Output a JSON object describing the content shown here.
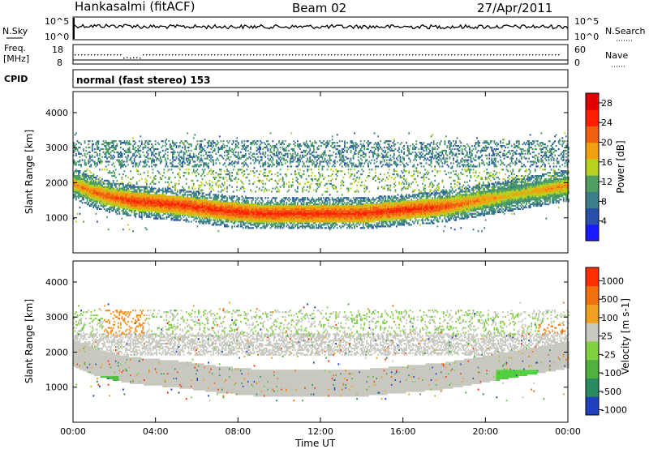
{
  "header": {
    "station": "Hankasalmi (fitACF)",
    "beam": "Beam 02",
    "date": "27/Apr/2011"
  },
  "top_panels": {
    "nsky_label": "N.Sky",
    "nsky_ticks": [
      "10^5",
      "10^0"
    ],
    "nsearch_label": "N.Search",
    "freq_label_1": "Freq.",
    "freq_label_2": "[MHz]",
    "freq_ticks_left": [
      "18",
      "8"
    ],
    "nave_ticks_right": [
      "60",
      "0"
    ],
    "nave_label": "Nave",
    "cpid_label": "CPID",
    "cpid_text": "normal (fast stereo) 153"
  },
  "axes": {
    "xlabel": "Time UT",
    "ylabel": "Slant Range [km]",
    "xticks": [
      "00:00",
      "04:00",
      "08:00",
      "12:00",
      "16:00",
      "20:00",
      "00:00"
    ],
    "xticks_hours": [
      0,
      4,
      8,
      12,
      16,
      20,
      24
    ],
    "yticks": [
      "1000",
      "2000",
      "3000",
      "4000"
    ],
    "yticks_values": [
      1000,
      2000,
      3000,
      4000
    ],
    "ylim": [
      0,
      4600
    ],
    "xlim_hours": [
      0,
      24
    ]
  },
  "colorbars": {
    "power": {
      "label": "Power [dB]",
      "ticks": [
        "4",
        "8",
        "12",
        "16",
        "20",
        "24",
        "28"
      ],
      "colors": [
        "#1a1aff",
        "#2a4faa",
        "#3a7f8a",
        "#4fa060",
        "#b8d020",
        "#f0a010",
        "#f06010",
        "#ff2000",
        "#e00000"
      ]
    },
    "velocity": {
      "label": "Velocity [m s-1]",
      "ticks": [
        "1000",
        "500",
        "100",
        "25",
        "-25",
        "-100",
        "-500",
        "-1000"
      ],
      "colors": [
        "#2040c0",
        "#2a8a60",
        "#50b040",
        "#80d040",
        "#c8c8c0",
        "#f0a020",
        "#f07010",
        "#ff3000"
      ]
    }
  },
  "chart_data": [
    {
      "type": "heatmap",
      "title": "Power",
      "xlabel": "Time UT",
      "ylabel": "Slant Range [km]",
      "x_hours": [
        0,
        1,
        2,
        3,
        4,
        5,
        6,
        7,
        8,
        9,
        10,
        11,
        12,
        13,
        14,
        15,
        16,
        17,
        18,
        19,
        20,
        21,
        22,
        23,
        24
      ],
      "main_band_center_km": [
        1950,
        1700,
        1550,
        1450,
        1400,
        1350,
        1280,
        1200,
        1150,
        1100,
        1100,
        1100,
        1100,
        1100,
        1100,
        1150,
        1200,
        1250,
        1300,
        1400,
        1500,
        1600,
        1700,
        1800,
        1900
      ],
      "main_band_power_db": [
        22,
        24,
        26,
        28,
        28,
        28,
        28,
        28,
        28,
        28,
        28,
        28,
        28,
        28,
        28,
        28,
        28,
        28,
        26,
        24,
        22,
        20,
        20,
        22,
        22
      ],
      "colorbar_range_db": [
        0,
        32
      ]
    },
    {
      "type": "heatmap",
      "title": "Velocity",
      "xlabel": "Time UT",
      "ylabel": "Slant Range [km]",
      "x_hours": [
        0,
        4,
        8,
        12,
        16,
        20,
        24
      ],
      "colorbar_range_ms": [
        -1000,
        1000
      ]
    }
  ]
}
